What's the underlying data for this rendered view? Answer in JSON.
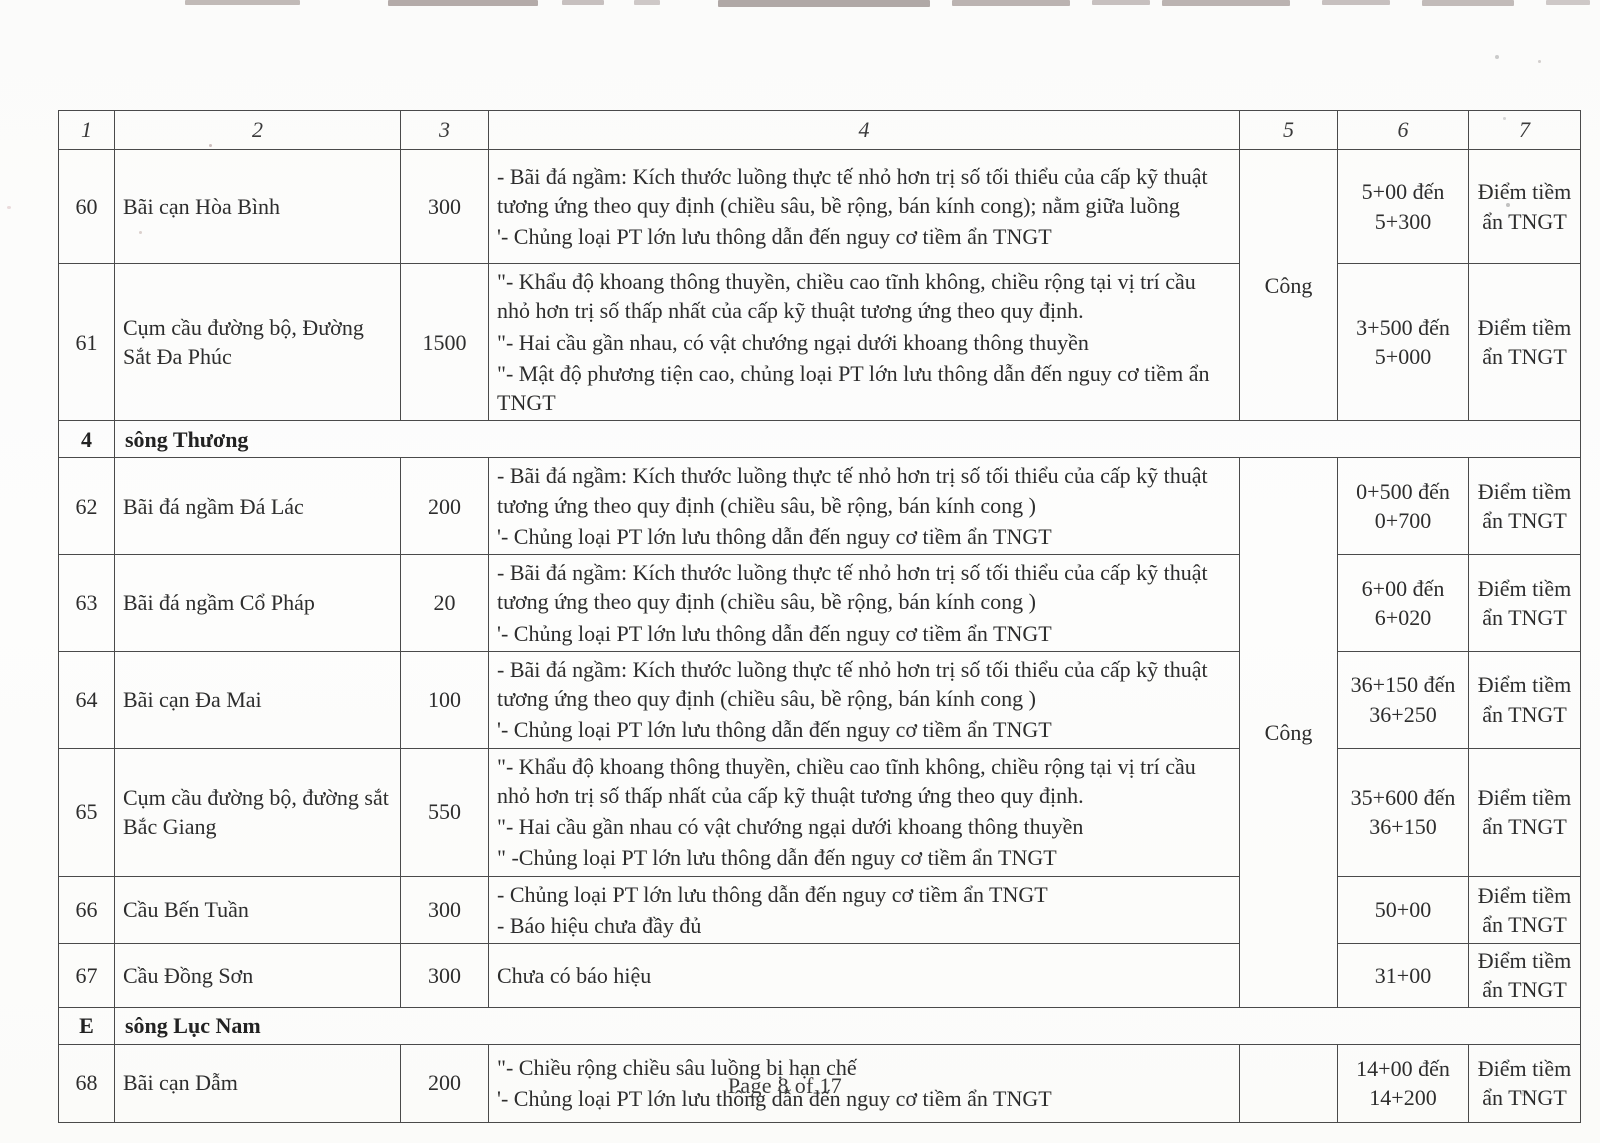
{
  "document": {
    "footer": "Page 8 of 17",
    "header_columns": [
      "1",
      "2",
      "3",
      "4",
      "5",
      "6",
      "7"
    ],
    "rows": [
      {
        "type": "item",
        "no": "60",
        "name": "Bãi cạn Hòa Bình",
        "value": "300",
        "desc": [
          "- Bãi đá ngầm: Kích thước luồng thực tế nhỏ hơn trị số tối thiểu của cấp kỹ thuật tương ứng theo quy định (chiều sâu, bề rộng, bán kính cong); nằm giữa luồng",
          "'- Chủng loại PT lớn lưu thông dẫn đến nguy cơ tiềm ẩn TNGT"
        ],
        "cong_span": 2,
        "cong": "Công",
        "km": [
          "5+00 đến",
          "5+300"
        ],
        "risk": "Điểm tiềm ẩn TNGT"
      },
      {
        "type": "item",
        "no": "61",
        "name": "Cụm cầu đường bộ, Đường Sắt Đa Phúc",
        "value": "1500",
        "desc": [
          "\"- Khẩu độ khoang thông thuyền, chiều cao tĩnh không, chiều rộng  tại vị trí cầu nhỏ hơn trị số thấp nhất của cấp kỹ thuật tương ứng theo quy định.",
          "\"- Hai cầu gần nhau, có vật chướng ngại dưới khoang thông thuyền",
          "\"- Mật độ phương tiện cao, chủng loại PT lớn lưu thông dẫn đến nguy cơ tiềm ẩn TNGT"
        ],
        "km": [
          "3+500 đến",
          "5+000"
        ],
        "risk": "Điểm tiềm ẩn TNGT"
      },
      {
        "type": "section",
        "no": "4",
        "name": "sông Thương"
      },
      {
        "type": "item",
        "no": "62",
        "name": "Bãi đá ngầm Đá Lác",
        "value": "200",
        "desc": [
          "- Bãi đá ngầm: Kích thước luồng thực tế nhỏ hơn trị số tối thiểu của cấp kỹ thuật tương ứng theo quy định (chiều sâu, bề rộng, bán kính cong )",
          "'- Chủng loại PT lớn lưu thông dẫn đến nguy cơ tiềm ẩn TNGT"
        ],
        "cong_span": 6,
        "cong": "Công",
        "km": [
          "0+500 đến",
          "0+700"
        ],
        "risk": "Điểm tiềm ẩn TNGT"
      },
      {
        "type": "item",
        "no": "63",
        "name": "Bãi đá ngầm Cổ Pháp",
        "value": "20",
        "desc": [
          "- Bãi đá ngầm: Kích thước luồng thực tế nhỏ hơn trị số tối thiểu của cấp kỹ thuật tương ứng theo quy định (chiều sâu, bề rộng, bán kính cong )",
          "'- Chủng loại PT lớn lưu thông dẫn đến nguy cơ tiềm ẩn TNGT"
        ],
        "km": [
          "6+00 đến",
          "6+020"
        ],
        "risk": "Điểm tiềm ẩn TNGT"
      },
      {
        "type": "item",
        "no": "64",
        "name": "Bãi cạn Đa Mai",
        "value": "100",
        "desc": [
          "- Bãi đá ngầm: Kích thước luồng thực tế nhỏ hơn trị số tối thiểu của cấp kỹ thuật tương ứng theo quy định (chiều sâu, bề rộng, bán kính cong )",
          "'- Chủng loại PT lớn lưu thông dẫn đến nguy cơ tiềm ẩn TNGT"
        ],
        "km": [
          "36+150 đến",
          "36+250"
        ],
        "risk": "Điểm tiềm ẩn TNGT"
      },
      {
        "type": "item",
        "no": "65",
        "name": "Cụm cầu đường bộ, đường sắt Bắc Giang",
        "value": "550",
        "desc": [
          "\"- Khẩu độ khoang thông thuyền, chiều cao tĩnh không, chiều rộng  tại vị trí cầu nhỏ hơn trị số thấp nhất của cấp kỹ thuật tương ứng theo quy định.",
          "\"- Hai cầu gần nhau có vật chướng ngại dưới khoang thông thuyền",
          "\" -Chủng loại PT lớn lưu thông dẫn đến nguy cơ tiềm ẩn TNGT"
        ],
        "km": [
          "35+600 đến",
          "36+150"
        ],
        "risk": "Điểm tiềm ẩn TNGT"
      },
      {
        "type": "item",
        "no": "66",
        "name": "Cầu Bến Tuần",
        "value": "300",
        "desc": [
          "- Chủng loại PT lớn lưu thông dẫn đến nguy cơ tiềm ẩn TNGT",
          "- Báo hiệu chưa đầy đủ"
        ],
        "km": [
          "50+00"
        ],
        "risk": "Điểm tiềm ẩn TNGT"
      },
      {
        "type": "item",
        "no": "67",
        "name": "Cầu Đồng Sơn",
        "value": "300",
        "desc": [
          "Chưa có báo hiệu"
        ],
        "km": [
          "31+00"
        ],
        "risk": "Điểm tiềm ẩn TNGT"
      },
      {
        "type": "section",
        "no": "E",
        "name": "sông Lục Nam"
      },
      {
        "type": "item",
        "no": "68",
        "name": "Bãi cạn Dẫm",
        "value": "200",
        "desc": [
          "\"- Chiều rộng chiều sâu luồng bị hạn chế",
          "'- Chủng loại PT lớn lưu thông dẫn đến nguy cơ tiềm ẩn TNGT"
        ],
        "cong_span": 1,
        "cong": "",
        "km": [
          "14+00 đến",
          "14+200"
        ],
        "risk": "Điểm tiềm ẩn TNGT"
      }
    ]
  }
}
